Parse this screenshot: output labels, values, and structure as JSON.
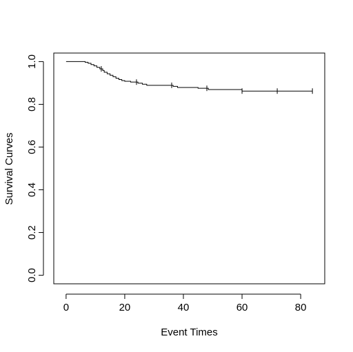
{
  "chart_data": {
    "type": "line",
    "title": "",
    "xlabel": "Event Times",
    "ylabel": "Survival Curves",
    "xlim": [
      -4.2,
      88.2
    ],
    "ylim": [
      -0.04,
      1.04
    ],
    "x_ticks": [
      0,
      20,
      40,
      60,
      80
    ],
    "x_tick_labels": [
      "0",
      "20",
      "40",
      "60",
      "80"
    ],
    "y_ticks": [
      0.0,
      0.2,
      0.4,
      0.6,
      0.8,
      1.0
    ],
    "y_tick_labels": [
      "0.0",
      "0.2",
      "0.4",
      "0.6",
      "0.8",
      "1.0"
    ],
    "grid": false,
    "legend": "none",
    "line_color": "#000000",
    "series": [
      {
        "step_x": [
          0,
          6.5,
          7.5,
          8.5,
          9.5,
          10.5,
          11.5,
          12.5,
          13.0,
          14.0,
          15.0,
          16.0,
          17.0,
          18.0,
          19.0,
          20.0,
          22.0,
          24.5,
          26.0,
          27.5,
          36.5,
          38.0,
          45.0,
          48.5,
          60.0,
          84.0
        ],
        "step_y": [
          1.0,
          0.997,
          0.992,
          0.986,
          0.98,
          0.973,
          0.966,
          0.958,
          0.95,
          0.943,
          0.936,
          0.929,
          0.922,
          0.916,
          0.911,
          0.908,
          0.904,
          0.899,
          0.894,
          0.889,
          0.884,
          0.879,
          0.875,
          0.869,
          0.862,
          0.862
        ],
        "censor_x": [
          12.0,
          24.0,
          36.0,
          48.0,
          60.0,
          72.0,
          84.0
        ]
      }
    ]
  }
}
